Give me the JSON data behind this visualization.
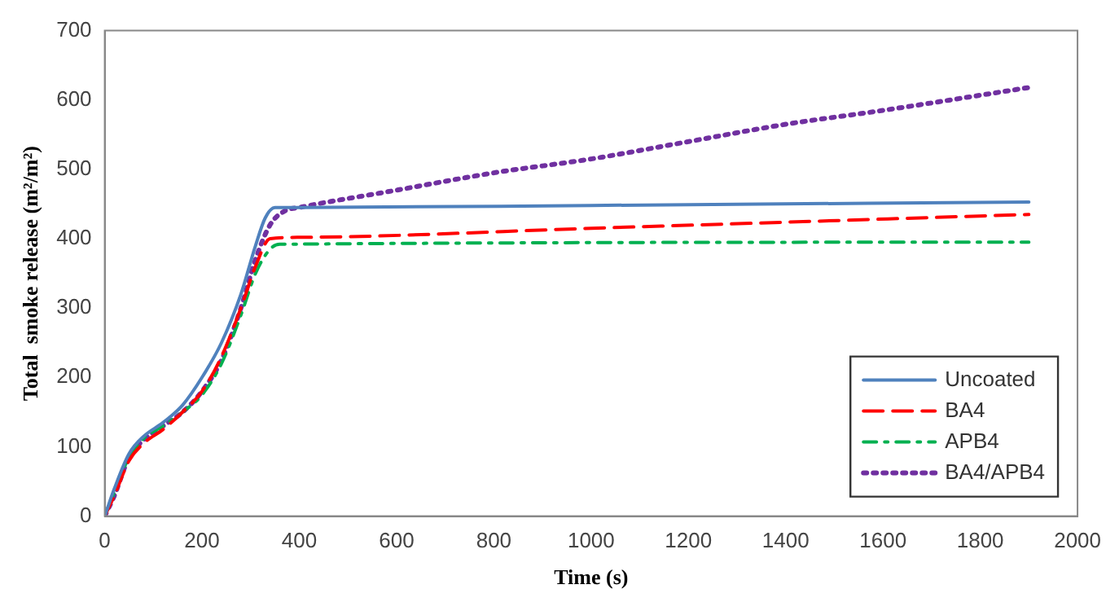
{
  "chart_data": {
    "type": "line",
    "xlabel": "Time (s)",
    "ylabel": "Total  smoke release (m²/m²)",
    "xlim": [
      0,
      2000
    ],
    "xticks": [
      0,
      200,
      400,
      600,
      800,
      1000,
      1200,
      1400,
      1600,
      1800,
      2000
    ],
    "ylim": [
      0,
      700
    ],
    "yticks": [
      0,
      100,
      200,
      300,
      400,
      500,
      600,
      700
    ],
    "grid": false,
    "legend": "bottom right",
    "marker": "none",
    "series": [
      {
        "name": "Uncoated",
        "color": "#4f81bd",
        "line_style": "solid",
        "x": [
          0,
          20,
          50,
          80,
          120,
          160,
          200,
          240,
          280,
          310,
          330,
          350,
          400,
          1000,
          1900
        ],
        "values": [
          0,
          40,
          90,
          115,
          135,
          160,
          200,
          250,
          320,
          390,
          430,
          445,
          445,
          448,
          453
        ]
      },
      {
        "name": "BA4",
        "color": "#ff0000",
        "line_style": "dashed",
        "x": [
          0,
          20,
          50,
          80,
          120,
          160,
          200,
          240,
          280,
          310,
          340,
          400,
          1000,
          1900
        ],
        "values": [
          0,
          30,
          80,
          105,
          125,
          150,
          180,
          230,
          300,
          360,
          400,
          402,
          415,
          435
        ]
      },
      {
        "name": "APB4",
        "color": "#00b050",
        "line_style": "dashdot",
        "x": [
          0,
          20,
          50,
          80,
          120,
          160,
          200,
          240,
          280,
          310,
          340,
          360,
          1900
        ],
        "values": [
          0,
          35,
          85,
          112,
          130,
          150,
          175,
          220,
          290,
          350,
          385,
          392,
          395
        ]
      },
      {
        "name": "BA4/APB4",
        "color": "#7030a0",
        "line_style": "dotted",
        "x": [
          0,
          20,
          50,
          80,
          120,
          160,
          200,
          240,
          280,
          310,
          340,
          370,
          400,
          600,
          800,
          1000,
          1200,
          1400,
          1600,
          1900
        ],
        "values": [
          0,
          30,
          85,
          110,
          130,
          150,
          180,
          225,
          300,
          370,
          420,
          440,
          445,
          470,
          495,
          515,
          540,
          565,
          585,
          618
        ]
      }
    ]
  }
}
